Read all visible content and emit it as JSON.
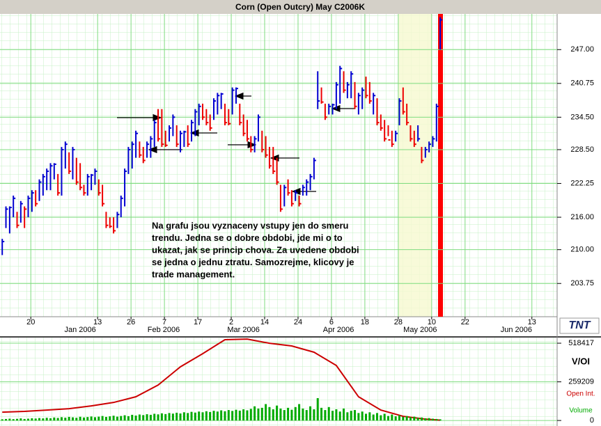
{
  "title": "Corn (Open Outcry) May C2006K",
  "logo": "TNT",
  "chart_data": [
    {
      "type": "ohlc",
      "high": [
        212,
        218,
        218,
        220,
        217,
        219,
        218,
        220,
        221,
        221,
        223,
        224,
        225,
        226,
        226,
        224,
        229,
        230,
        228,
        229,
        227,
        226,
        222,
        224,
        224,
        225,
        223,
        222,
        217,
        216,
        216,
        217,
        220,
        225,
        229,
        230,
        232,
        230,
        229,
        230,
        231,
        234,
        236,
        236,
        232,
        233,
        235,
        233,
        232,
        232,
        233,
        234,
        236,
        237,
        237,
        236,
        235,
        238,
        239,
        239,
        237,
        236,
        240,
        240,
        237,
        235,
        234,
        231,
        231,
        235,
        232,
        231,
        229,
        229,
        227,
        222,
        222,
        223,
        221,
        221,
        220,
        222,
        223,
        224,
        227,
        243,
        240,
        237,
        237,
        237,
        241,
        244,
        243,
        241,
        243,
        241,
        239,
        240,
        242,
        241,
        239,
        238,
        235,
        234,
        233,
        232,
        232,
        238,
        240,
        237,
        233,
        232,
        233,
        229,
        229,
        230,
        231,
        237,
        253
      ],
      "low": [
        209,
        214,
        213,
        216,
        214,
        215,
        214,
        216,
        217,
        218,
        219,
        220,
        221,
        221,
        223,
        220,
        220,
        225,
        224,
        223,
        222,
        221,
        220,
        220,
        221,
        222,
        220,
        218,
        214,
        214,
        213,
        214,
        216,
        218,
        224,
        225,
        227,
        227,
        226,
        227,
        227,
        229,
        230,
        229,
        229,
        230,
        231,
        229,
        228,
        229,
        229,
        230,
        231,
        233,
        234,
        233,
        232,
        234,
        235,
        236,
        233,
        233,
        235,
        237,
        233,
        231,
        230,
        228,
        228,
        230,
        228,
        227,
        225,
        224,
        222,
        217,
        218,
        220,
        218,
        219,
        218,
        220,
        220,
        221,
        223,
        236,
        237,
        234,
        235,
        235,
        236,
        237,
        239,
        238,
        238,
        236,
        235,
        236,
        238,
        237,
        235,
        233,
        232,
        230,
        231,
        229,
        230,
        233,
        235,
        233,
        230,
        229,
        230,
        226,
        227,
        228,
        229,
        230,
        247
      ],
      "close": [
        211.5,
        217.5,
        217.8,
        219.5,
        214.5,
        218.5,
        217.5,
        219.5,
        220.5,
        218.5,
        222.5,
        223.5,
        224.5,
        225.5,
        225.8,
        220.5,
        228.5,
        229.5,
        224.5,
        228.5,
        222.5,
        221.5,
        220.5,
        223.5,
        223.8,
        224.5,
        220.5,
        218.5,
        214.5,
        214.3,
        213.5,
        216.5,
        219.5,
        224.5,
        228.5,
        229.5,
        231.5,
        227.5,
        226.5,
        229.5,
        230.5,
        233.5,
        230.5,
        229.5,
        229.3,
        232.5,
        234.5,
        229.5,
        231.5,
        231.8,
        229.5,
        233.5,
        235.5,
        236.5,
        234.5,
        233.5,
        232.5,
        237.5,
        238.5,
        238.8,
        233.5,
        233.3,
        239.5,
        239.8,
        233.5,
        231.5,
        230.5,
        228.5,
        230.5,
        234.5,
        228.5,
        227.5,
        225.5,
        224.5,
        222.5,
        217.5,
        221.5,
        220.5,
        218.5,
        220.5,
        218.5,
        221.5,
        222.5,
        223.5,
        226.5,
        237.5,
        237.3,
        234.5,
        236.5,
        236.8,
        240.5,
        243.5,
        239.5,
        240.5,
        242.5,
        236.5,
        238.5,
        239.5,
        238.5,
        237.5,
        238.5,
        233.5,
        232.5,
        230.5,
        230.3,
        229.5,
        231.5,
        237.5,
        235.5,
        233.5,
        230.5,
        229.5,
        230.5,
        226.5,
        228.5,
        229.5,
        230.5,
        236.5,
        252.5
      ],
      "up_color": "#0000d0",
      "down_color": "#ee0000",
      "xlim": [
        -0.6,
        149.5
      ],
      "ylim": [
        197.6,
        253.6
      ],
      "yticks": [
        {
          "value": 203.75,
          "label": "203.75"
        },
        {
          "value": 210,
          "label": "210.00"
        },
        {
          "value": 216,
          "label": "216.00"
        },
        {
          "value": 222.25,
          "label": "222.25"
        },
        {
          "value": 228.5,
          "label": "228.50"
        },
        {
          "value": 234.5,
          "label": "234.50"
        },
        {
          "value": 240.75,
          "label": "240.75"
        },
        {
          "value": 247,
          "label": "247.00"
        }
      ],
      "xticks": [
        {
          "value": 7.7,
          "label": "20"
        },
        {
          "value": 25.7,
          "label": "13"
        },
        {
          "value": 34.7,
          "label": "26"
        },
        {
          "value": 43.7,
          "label": "7"
        },
        {
          "value": 52.7,
          "label": "17"
        },
        {
          "value": 61.7,
          "label": "2"
        },
        {
          "value": 70.7,
          "label": "14"
        },
        {
          "value": 79.7,
          "label": "24"
        },
        {
          "value": 88.7,
          "label": "6"
        },
        {
          "value": 97.7,
          "label": "18"
        },
        {
          "value": 106.7,
          "label": "28"
        },
        {
          "value": 115.7,
          "label": "10"
        },
        {
          "value": 124.7,
          "label": "22"
        },
        {
          "value": 142.7,
          "label": "13"
        }
      ],
      "month_labels": [
        {
          "value": 21,
          "label": "Jan 2006"
        },
        {
          "value": 43.5,
          "label": "Feb 2006"
        },
        {
          "value": 65,
          "label": "Mar 2006"
        },
        {
          "value": 90.6,
          "label": "Apr 2006"
        },
        {
          "value": 112.6,
          "label": "May 2006"
        },
        {
          "value": 138.5,
          "label": "Jun 2006"
        }
      ],
      "annotation": [
        "Na grafu jsou vyznaceny vstupy jen do smeru",
        "trendu. Jedna se o dobre obdobi, jde mi o to",
        "ukazat, jak se princip chova. Za uvedene obdobi",
        "se jedna o jednu ztratu. Samozrejme, klicovy je",
        "trade management."
      ],
      "grid": true
    },
    {
      "type": "volume",
      "title": "V/OI",
      "series": [
        {
          "name": "Open Int.",
          "color": "#cc0000",
          "x": [
            0,
            6,
            12,
            18,
            24,
            30,
            36,
            42,
            48,
            54,
            60,
            66,
            72,
            78,
            84,
            90,
            96,
            102,
            108,
            114,
            118
          ],
          "values": [
            56000,
            61000,
            70000,
            79000,
            98000,
            121000,
            159000,
            238000,
            360000,
            448000,
            542000,
            546000,
            518000,
            500000,
            458000,
            369000,
            159000,
            70000,
            28000,
            9000,
            2000
          ]
        },
        {
          "name": "Volume",
          "color": "#00aa00",
          "values": [
            8000,
            10000,
            12000,
            9000,
            11000,
            14000,
            10000,
            12000,
            15000,
            13000,
            16000,
            14000,
            18000,
            15000,
            20000,
            17000,
            22000,
            19000,
            24000,
            21000,
            18000,
            25000,
            20000,
            23000,
            27000,
            22000,
            26000,
            30000,
            24000,
            28000,
            32000,
            26000,
            30000,
            35000,
            29000,
            38000,
            33000,
            40000,
            36000,
            42000,
            38000,
            45000,
            41000,
            48000,
            43000,
            50000,
            46000,
            52000,
            47000,
            55000,
            50000,
            58000,
            53000,
            60000,
            55000,
            62000,
            57000,
            65000,
            60000,
            68000,
            62000,
            70000,
            64000,
            72000,
            66000,
            75000,
            68000,
            78000,
            95000,
            80000,
            85000,
            110000,
            90000,
            75000,
            100000,
            80000,
            70000,
            85000,
            72000,
            90000,
            110000,
            80000,
            70000,
            95000,
            75000,
            150000,
            85000,
            70000,
            90000,
            65000,
            75000,
            60000,
            80000,
            55000,
            65000,
            70000,
            50000,
            60000,
            45000,
            55000,
            40000,
            50000,
            35000,
            45000,
            30000,
            40000,
            28000,
            35000,
            25000,
            30000,
            22000,
            26000,
            18000,
            20000,
            15000,
            16000,
            12000,
            10000,
            8000
          ]
        }
      ],
      "xlim": [
        -0.6,
        149.5
      ],
      "ylim": [
        -37000,
        556000
      ],
      "yticks": [
        0,
        259209,
        518417
      ],
      "grid": true
    }
  ]
}
